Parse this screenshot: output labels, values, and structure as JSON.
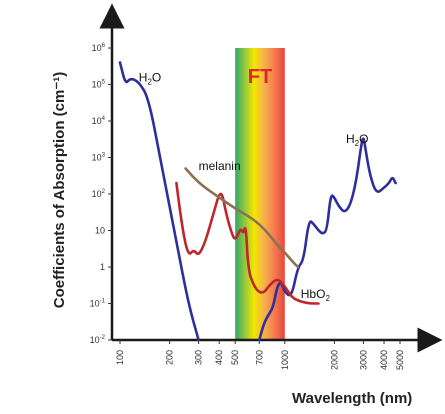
{
  "chart_data": {
    "type": "line",
    "xlabel": "Wavelength (nm)",
    "ylabel": "Coefficients of Absorption (cm⁻¹)",
    "x_scale": "log",
    "y_scale": "log",
    "xlim": [
      100,
      5000
    ],
    "ylim": [
      0.01,
      1000000
    ],
    "x_ticks": [
      {
        "value": 100,
        "label": "100"
      },
      {
        "value": 200,
        "label": "200"
      },
      {
        "value": 300,
        "label": "300"
      },
      {
        "value": 400,
        "label": "400"
      },
      {
        "value": 500,
        "label": "500"
      },
      {
        "value": 700,
        "label": "700"
      },
      {
        "value": 1000,
        "label": "1000"
      },
      {
        "value": 2000,
        "label": "2000"
      },
      {
        "value": 3000,
        "label": "3000"
      },
      {
        "value": 4000,
        "label": "4000"
      },
      {
        "value": 5000,
        "label": "5000"
      }
    ],
    "y_ticks": [
      {
        "value": 0.01,
        "base": "10",
        "exp": "-2"
      },
      {
        "value": 0.1,
        "base": "10",
        "exp": "-1"
      },
      {
        "value": 1,
        "base": "1",
        "exp": ""
      },
      {
        "value": 10,
        "base": "10",
        "exp": ""
      },
      {
        "value": 100,
        "base": "10",
        "exp": "2"
      },
      {
        "value": 1000,
        "base": "10",
        "exp": "3"
      },
      {
        "value": 10000,
        "base": "10",
        "exp": "4"
      },
      {
        "value": 100000,
        "base": "10",
        "exp": "5"
      },
      {
        "value": 1000000,
        "base": "10",
        "exp": "6"
      }
    ],
    "band": {
      "label": "FT",
      "x_start": 500,
      "x_end": 1000
    },
    "series": [
      {
        "name": "H2O",
        "color": "#2e2f9a",
        "segments": [
          [
            [
              100,
              400000
            ],
            [
              108,
              100000
            ],
            [
              115,
              150000
            ],
            [
              130,
              120000
            ],
            [
              150,
              40000
            ],
            [
              180,
              500
            ],
            [
              220,
              5
            ],
            [
              260,
              0.1
            ],
            [
              300,
              0.01
            ]
          ],
          [
            [
              700,
              0.01
            ],
            [
              750,
              0.03
            ],
            [
              800,
              0.05
            ],
            [
              850,
              0.08
            ],
            [
              900,
              0.3
            ],
            [
              950,
              0.4
            ],
            [
              1000,
              0.2
            ],
            [
              1100,
              0.15
            ],
            [
              1200,
              1
            ],
            [
              1300,
              1.5
            ],
            [
              1400,
              20
            ],
            [
              1500,
              15
            ],
            [
              1600,
              10
            ],
            [
              1700,
              8
            ],
            [
              1800,
              10
            ],
            [
              1900,
              100
            ],
            [
              2000,
              80
            ],
            [
              2100,
              50
            ],
            [
              2300,
              30
            ],
            [
              2500,
              50
            ],
            [
              2700,
              200
            ],
            [
              2900,
              2000
            ],
            [
              3000,
              4000
            ],
            [
              3100,
              1500
            ],
            [
              3300,
              300
            ],
            [
              3600,
              100
            ],
            [
              4000,
              150
            ],
            [
              4300,
              200
            ],
            [
              4500,
              300
            ],
            [
              4700,
              200
            ]
          ]
        ]
      },
      {
        "name": "HbO2",
        "color": "#c0252b",
        "segments": [
          [
            [
              220,
              200
            ],
            [
              240,
              10
            ],
            [
              260,
              2
            ],
            [
              280,
              3
            ],
            [
              300,
              2
            ],
            [
              330,
              5
            ],
            [
              370,
              30
            ],
            [
              410,
              150
            ],
            [
              440,
              30
            ],
            [
              470,
              10
            ],
            [
              500,
              5
            ],
            [
              540,
              12
            ],
            [
              560,
              8
            ],
            [
              580,
              15
            ],
            [
              600,
              0.8
            ],
            [
              650,
              0.3
            ],
            [
              700,
              0.2
            ],
            [
              750,
              0.2
            ],
            [
              800,
              0.3
            ],
            [
              900,
              0.5
            ],
            [
              1000,
              0.3
            ],
            [
              1100,
              0.15
            ],
            [
              1200,
              0.12
            ],
            [
              1400,
              0.1
            ],
            [
              1600,
              0.1
            ]
          ]
        ]
      },
      {
        "name": "melanin",
        "color": "#8b7352",
        "segments": [
          [
            [
              250,
              500
            ],
            [
              300,
              200
            ],
            [
              400,
              80
            ],
            [
              500,
              40
            ],
            [
              600,
              25
            ],
            [
              700,
              15
            ],
            [
              800,
              8
            ],
            [
              900,
              4
            ],
            [
              1000,
              2.5
            ],
            [
              1100,
              1.5
            ],
            [
              1200,
              1
            ]
          ]
        ]
      }
    ],
    "annotations": [
      {
        "text": "H",
        "sub": "2",
        "tail": "O",
        "target": "H2O-short",
        "x": 130,
        "y": 120000
      },
      {
        "text": "H",
        "sub": "2",
        "tail": "O",
        "target": "H2O-long",
        "x": 2350,
        "y": 2500
      },
      {
        "text": "melanin",
        "sub": "",
        "tail": "",
        "target": "melanin",
        "x": 300,
        "y": 450
      },
      {
        "text": "HbO",
        "sub": "2",
        "tail": "",
        "target": "HbO2",
        "x": 1250,
        "y": 0.14
      }
    ],
    "legend": "none",
    "grid": false
  }
}
